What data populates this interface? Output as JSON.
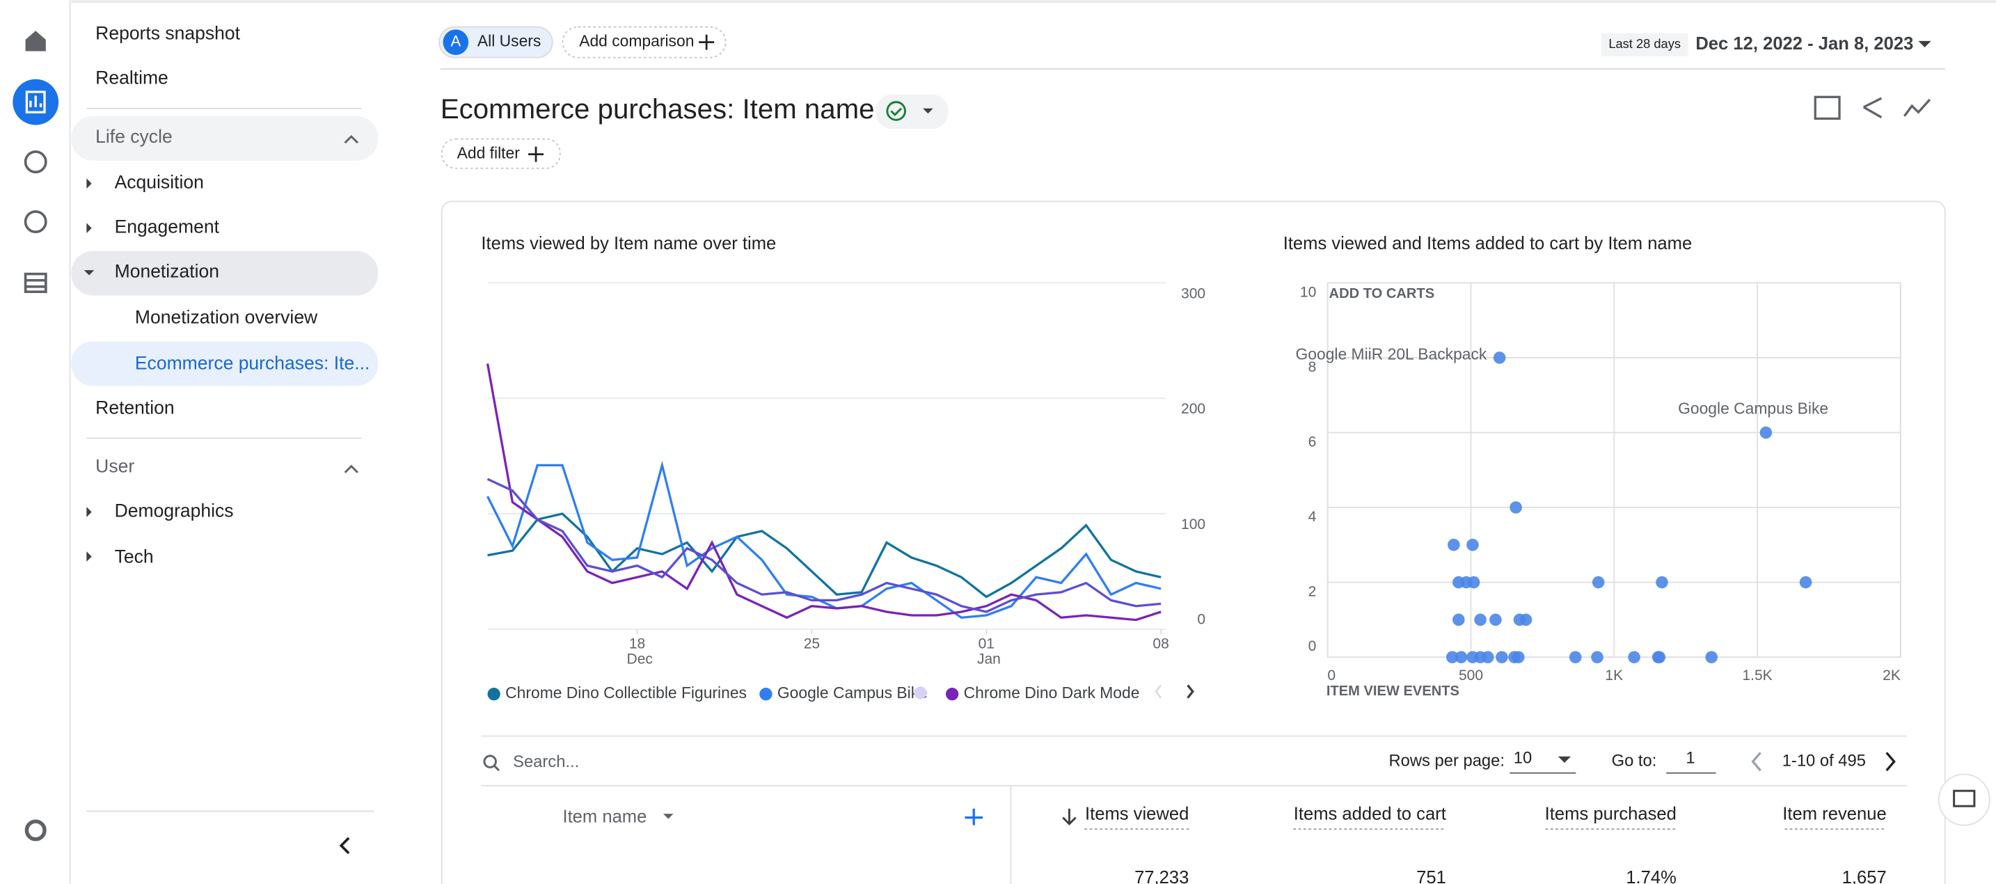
{
  "header": {
    "segment_initial": "A",
    "segment": "All Users",
    "add_comparison": "Add comparison",
    "date_label": "Last 28 days",
    "date_range": "Dec 12, 2022 - Jan 8, 2023",
    "title": "Ecommerce purchases: Item name",
    "add_filter": "Add filter"
  },
  "nav": {
    "items": [
      "Reports snapshot",
      "Realtime"
    ],
    "lifecycle": {
      "title": "Life cycle",
      "items": [
        "Acquisition",
        "Engagement",
        "Monetization"
      ],
      "sub": [
        "Monetization overview",
        "Ecommerce purchases: Ite..."
      ],
      "after": "Retention"
    },
    "user": {
      "title": "User",
      "items": [
        "Demographics",
        "Tech"
      ]
    }
  },
  "chart_data": [
    {
      "type": "line",
      "title": "Items viewed by Item name over time",
      "x": [
        0,
        1,
        2,
        3,
        4,
        5,
        6,
        7,
        8,
        9,
        10,
        11,
        12,
        13,
        14,
        15,
        16,
        17,
        18,
        19,
        20,
        21,
        22,
        23,
        24,
        25,
        26,
        27
      ],
      "xlim": [
        0,
        27
      ],
      "xticks": [
        {
          "value": 6,
          "label": "18",
          "sublabel": "Dec"
        },
        {
          "value": 13,
          "label": "25"
        },
        {
          "value": 20,
          "label": "01",
          "sublabel": "Jan"
        },
        {
          "value": 27,
          "label": "08"
        }
      ],
      "ylim": [
        0,
        300
      ],
      "yticks": [
        0,
        100,
        200,
        300
      ],
      "grid": true,
      "series": [
        {
          "name": "Chrome Dino Collectible Figurines",
          "color": "#12739e",
          "values": [
            64,
            68,
            95,
            100,
            80,
            50,
            70,
            65,
            75,
            50,
            80,
            85,
            70,
            50,
            30,
            32,
            75,
            62,
            55,
            45,
            28,
            40,
            55,
            70,
            90,
            60,
            50,
            45
          ]
        },
        {
          "name": "Google Campus Bike",
          "color": "#2f7ff0",
          "values": [
            115,
            72,
            142,
            142,
            75,
            60,
            62,
            142,
            55,
            70,
            80,
            60,
            30,
            28,
            18,
            20,
            35,
            40,
            25,
            10,
            12,
            20,
            45,
            40,
            65,
            30,
            40,
            35
          ]
        },
        {
          "name": "Chrome Dino Dark Mode",
          "color": "#7a23b8",
          "values": [
            230,
            110,
            95,
            80,
            50,
            40,
            45,
            50,
            35,
            75,
            30,
            20,
            10,
            20,
            18,
            20,
            15,
            12,
            12,
            15,
            20,
            30,
            25,
            10,
            12,
            10,
            8,
            15
          ]
        },
        {
          "color": "#5a4fd6",
          "values": [
            130,
            120,
            95,
            85,
            55,
            50,
            55,
            45,
            70,
            60,
            40,
            30,
            32,
            25,
            25,
            30,
            40,
            35,
            30,
            20,
            15,
            25,
            30,
            32,
            40,
            25,
            20,
            22
          ]
        }
      ]
    },
    {
      "type": "scatter",
      "title": "Items viewed and Items added to cart by Item name",
      "y_label": "ADD TO CARTS",
      "x_label": "ITEM VIEW EVENTS",
      "color": "#4a86e8",
      "xlim": [
        0,
        2000
      ],
      "xticks": [
        0,
        500,
        {
          "value": 1000,
          "label": "1K"
        },
        {
          "value": 1500,
          "label": "1.5K"
        },
        {
          "value": 2000,
          "label": "2K"
        }
      ],
      "ylim": [
        0,
        10
      ],
      "yticks": [
        0,
        2,
        4,
        6,
        8,
        10
      ],
      "grid": true,
      "x": [
        600,
        1530,
        657,
        440,
        506,
        457,
        484,
        510,
        945,
        1167,
        1669,
        457,
        533,
        586,
        670,
        692,
        435,
        466,
        506,
        533,
        559,
        608,
        652,
        666,
        865,
        941,
        1070,
        1154,
        1158,
        1340
      ],
      "values": [
        8,
        6,
        4,
        3,
        3,
        2,
        2,
        2,
        2,
        2,
        2,
        1,
        1,
        1,
        1,
        1,
        0,
        0,
        0,
        0,
        0,
        0,
        0,
        0,
        0,
        0,
        0,
        0,
        0,
        0
      ],
      "annotations": [
        {
          "text": "Google MiiR 20L Backpack",
          "index": 0
        },
        {
          "text": "Google Campus Bike",
          "index": 1
        }
      ]
    }
  ],
  "table": {
    "search": "Search...",
    "rows_per_page_label": "Rows per page:",
    "rows_per_page": "10",
    "goto_label": "Go to:",
    "goto": "1",
    "pagination": "1-10 of 495",
    "columns": [
      "Item name",
      "Items viewed",
      "Items added to cart",
      "Items purchased",
      "Item revenue"
    ],
    "rows": [
      [
        "77,233",
        "751",
        "1.74%",
        "1,657"
      ]
    ]
  }
}
